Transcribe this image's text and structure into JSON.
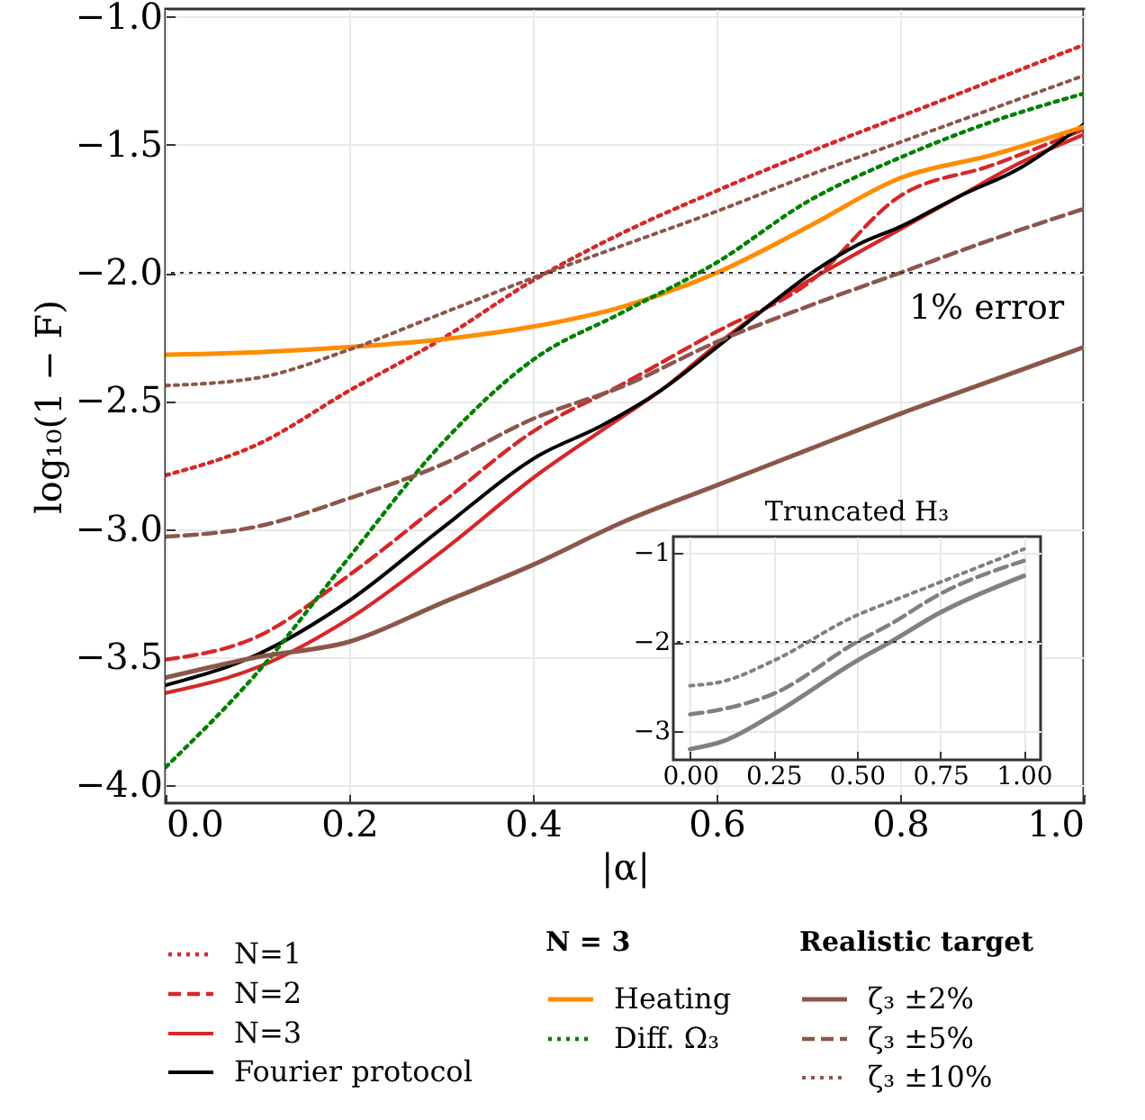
{
  "chart_data": [
    {
      "type": "line",
      "xlabel": "|α|",
      "ylabel": "log₁₀(1 − F)",
      "legend": "bottom",
      "legend_title": [
        null,
        "N = 3",
        "Realistic target"
      ],
      "grid": true,
      "xlim": [
        0,
        1
      ],
      "ylim": [
        -4.07,
        -0.97
      ],
      "xticks": [
        {
          "value": 0,
          "label": "0.0"
        },
        {
          "value": 0.2,
          "label": "0.2"
        },
        {
          "value": 0.4,
          "label": "0.4"
        },
        {
          "value": 0.6,
          "label": "0.6"
        },
        {
          "value": 0.8,
          "label": "0.8"
        },
        {
          "value": 1,
          "label": "1.0"
        }
      ],
      "yticks": [
        {
          "value": -4,
          "label": "−4.0"
        },
        {
          "value": -3.5,
          "label": "−3.5"
        },
        {
          "value": -3,
          "label": "−3.0"
        },
        {
          "value": -2.5,
          "label": "−2.5"
        },
        {
          "value": -2,
          "label": "−2.0"
        },
        {
          "value": -1.5,
          "label": "−1.5"
        },
        {
          "value": -1,
          "label": "−1.0"
        }
      ],
      "x": [
        0,
        0.1,
        0.2,
        0.3,
        0.4,
        0.5,
        0.6,
        0.7,
        0.8,
        0.9,
        1
      ],
      "series": [
        {
          "name": "N=1",
          "color": "#d62728",
          "line_style": "dotted",
          "values": [
            -2.79,
            -2.67,
            -2.46,
            -2.26,
            -2.03,
            -1.84,
            -1.68,
            -1.53,
            -1.39,
            -1.25,
            -1.11
          ]
        },
        {
          "name": "N=2",
          "color": "#d62728",
          "line_style": "dashed",
          "values": [
            -3.51,
            -3.42,
            -3.18,
            -2.9,
            -2.62,
            -2.43,
            -2.23,
            -2.04,
            -1.7,
            -1.58,
            -1.44
          ]
        },
        {
          "name": "N=3",
          "color": "#d62728",
          "line_style": "solid",
          "x": [
            0,
            0.1,
            0.2,
            0.3,
            0.408,
            0.473,
            0.539,
            0.604,
            0.669,
            0.735,
            0.8,
            0.865,
            0.931,
            1
          ],
          "values": [
            -3.64,
            -3.54,
            -3.35,
            -3.09,
            -2.78,
            -2.62,
            -2.46,
            -2.27,
            -2.1,
            -1.96,
            -1.83,
            -1.7,
            -1.57,
            -1.46
          ]
        },
        {
          "name": "Fourier protocol",
          "color": "#000000",
          "line_style": "solid",
          "x": [
            0,
            0.1,
            0.2,
            0.3,
            0.408,
            0.473,
            0.539,
            0.604,
            0.656,
            0.708,
            0.754,
            0.8,
            0.865,
            0.931,
            1
          ],
          "values": [
            -3.61,
            -3.49,
            -3.28,
            -3.0,
            -2.71,
            -2.6,
            -2.46,
            -2.28,
            -2.13,
            -1.99,
            -1.89,
            -1.82,
            -1.7,
            -1.59,
            -1.42
          ]
        },
        {
          "name": "Heating",
          "color": "#ff8c00",
          "line_style": "solid",
          "values": [
            -2.32,
            -2.31,
            -2.29,
            -2.26,
            -2.21,
            -2.13,
            -2.0,
            -1.82,
            -1.63,
            -1.54,
            -1.43
          ]
        },
        {
          "name": "Diff. Ω₃",
          "color": "#008000",
          "line_style": "dotted",
          "values": [
            -3.93,
            -3.56,
            -3.11,
            -2.67,
            -2.34,
            -2.15,
            -1.96,
            -1.72,
            -1.55,
            -1.41,
            -1.3
          ]
        },
        {
          "name": "ζ₃ ±2%",
          "color": "#8c564b",
          "line_style": "solid",
          "values": [
            -3.58,
            -3.5,
            -3.44,
            -3.29,
            -3.14,
            -2.97,
            -2.83,
            -2.69,
            -2.55,
            -2.42,
            -2.29
          ]
        },
        {
          "name": "ζ₃ ±5%",
          "color": "#8c564b",
          "line_style": "dashed",
          "values": [
            -3.03,
            -2.99,
            -2.88,
            -2.75,
            -2.57,
            -2.44,
            -2.27,
            -2.13,
            -2.0,
            -1.87,
            -1.75
          ]
        },
        {
          "name": "ζ₃ ±10%",
          "color": "#8c564b",
          "line_style": "dotted",
          "values": [
            -2.44,
            -2.41,
            -2.3,
            -2.16,
            -2.02,
            -1.89,
            -1.76,
            -1.62,
            -1.49,
            -1.36,
            -1.23
          ]
        }
      ],
      "ref_lines": [
        {
          "axis": "y",
          "value": -2,
          "color": "#333333",
          "line_style": "dotted"
        }
      ],
      "annotations": [
        "1% error"
      ]
    },
    {
      "type": "line",
      "title": "Truncated H₃",
      "grid": true,
      "xlim": [
        -0.05,
        1.05
      ],
      "ylim": [
        -3.32,
        -0.82
      ],
      "xticks": [
        {
          "value": 0,
          "label": "0.00"
        },
        {
          "value": 0.25,
          "label": "0.25"
        },
        {
          "value": 0.5,
          "label": "0.50"
        },
        {
          "value": 0.75,
          "label": "0.75"
        },
        {
          "value": 1,
          "label": "1.00"
        }
      ],
      "yticks": [
        {
          "value": -3,
          "label": "−3"
        },
        {
          "value": -2,
          "label": "−2"
        },
        {
          "value": -1,
          "label": "−1"
        }
      ],
      "x": [
        0,
        0.1,
        0.25,
        0.5,
        0.6,
        0.75,
        1
      ],
      "series": [
        {
          "color": "#808080",
          "line_style": "solid",
          "values": [
            -3.2,
            -3.11,
            -2.81,
            -2.21,
            -2.0,
            -1.67,
            -1.26
          ]
        },
        {
          "color": "#808080",
          "line_style": "dashed",
          "values": [
            -2.81,
            -2.75,
            -2.58,
            -2.0,
            -1.8,
            -1.46,
            -1.09
          ]
        },
        {
          "color": "#808080",
          "line_style": "dotted",
          "values": [
            -2.49,
            -2.44,
            -2.21,
            -1.7,
            -1.55,
            -1.33,
            -0.96
          ]
        }
      ],
      "ref_lines": [
        {
          "axis": "y",
          "value": -2,
          "color": "#333333",
          "line_style": "dotted"
        }
      ]
    }
  ]
}
